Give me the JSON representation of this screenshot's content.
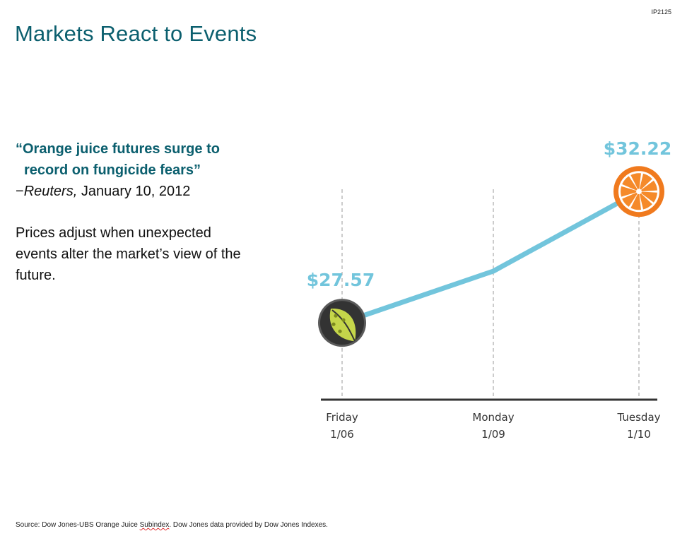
{
  "slide_id": "IP2125",
  "title": "Markets React to Events",
  "quote": {
    "line1": "“Orange juice futures surge to",
    "line2": "record on fungicide fears”",
    "dash": "−",
    "publisher": "Reuters,",
    "date": " January 10, 2012"
  },
  "explanation": "Prices adjust when unexpected events alter the market’s view of the future.",
  "source": {
    "prefix": "Source: Dow Jones-UBS Orange Juice ",
    "underlined": "Subindex",
    "suffix": ". Dow Jones data provided by Dow Jones Indexes."
  },
  "colors": {
    "title": "#0b5f6e",
    "line": "#72c5dc",
    "price_label": "#72c5dc",
    "axis": "#333333"
  },
  "icons": {
    "start": "leaf-icon",
    "end": "orange-slice-icon"
  },
  "chart_data": {
    "type": "line",
    "categories": [
      {
        "day": "Friday",
        "date": "1/06"
      },
      {
        "day": "Monday",
        "date": "1/09"
      },
      {
        "day": "Tuesday",
        "date": "1/10"
      }
    ],
    "values": [
      27.57,
      29.4,
      32.22
    ],
    "labeled_points": [
      {
        "index": 0,
        "label": "$27.57"
      },
      {
        "index": 2,
        "label": "$32.22"
      }
    ],
    "ylim": [
      25,
      33
    ],
    "grid": "vertical dashed lines at each category",
    "legend": "none"
  }
}
